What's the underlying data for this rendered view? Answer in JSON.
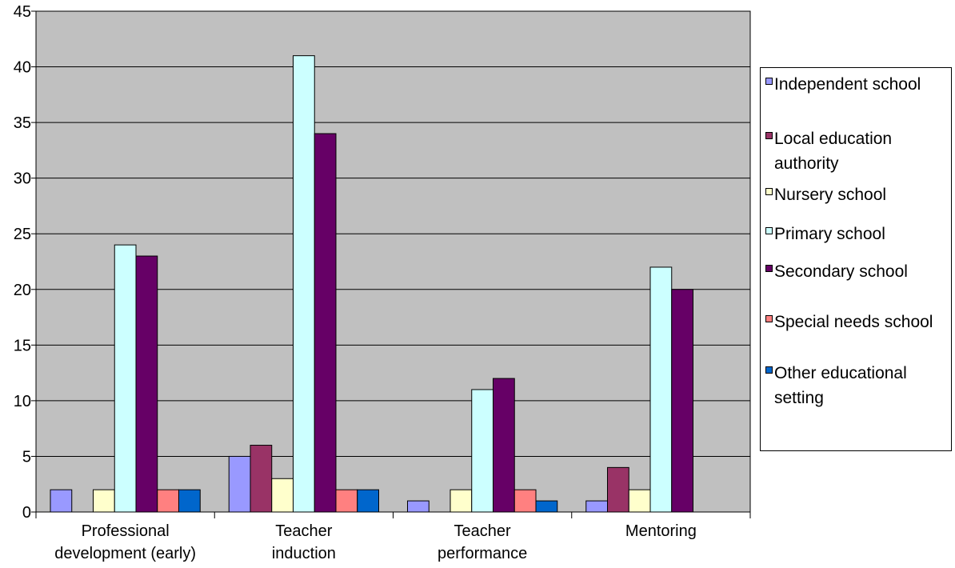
{
  "chart_data": {
    "type": "bar",
    "title": "",
    "xlabel": "",
    "ylabel": "",
    "ylim": [
      0,
      45
    ],
    "yticks": [
      "0",
      "5",
      "10",
      "15",
      "20",
      "25",
      "30",
      "35",
      "40",
      "45"
    ],
    "grid": true,
    "legend_position": "right",
    "categories": [
      [
        "Professional",
        "development (early)"
      ],
      [
        "Teacher",
        "induction"
      ],
      [
        "Teacher",
        "performance"
      ],
      [
        "Mentoring"
      ]
    ],
    "series": [
      {
        "name": "Independent school",
        "color": "#9999ff",
        "values": [
          2,
          5,
          1,
          1
        ]
      },
      {
        "name": "Local education authority",
        "color": "#993366",
        "values": [
          0,
          6,
          0,
          4
        ]
      },
      {
        "name": "Nursery school",
        "color": "#ffffcc",
        "values": [
          2,
          3,
          2,
          2
        ]
      },
      {
        "name": "Primary school",
        "color": "#ccffff",
        "values": [
          24,
          41,
          11,
          22
        ]
      },
      {
        "name": "Secondary school",
        "color": "#660066",
        "values": [
          23,
          34,
          12,
          20
        ]
      },
      {
        "name": "Special needs school",
        "color": "#ff8080",
        "values": [
          2,
          2,
          2,
          0
        ]
      },
      {
        "name": "Other educational setting",
        "color": "#0066cc",
        "values": [
          2,
          2,
          1,
          0
        ]
      }
    ],
    "plot_background": "#c0c0c0"
  },
  "legend": {
    "items": [
      {
        "label": "Independent school"
      },
      {
        "label": "Local education authority"
      },
      {
        "label": "Nursery school"
      },
      {
        "label": "Primary school"
      },
      {
        "label": "Secondary school"
      },
      {
        "label": "Special needs school"
      },
      {
        "label": "Other educational setting"
      }
    ]
  }
}
